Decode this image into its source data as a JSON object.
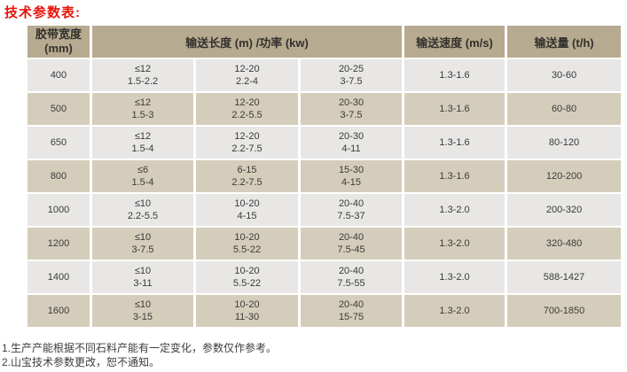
{
  "page": {
    "title": "技术参数表:"
  },
  "colors": {
    "title_red": "#e8130a",
    "header_bg": "#b6aa90",
    "row_tan": "#d5cdbb",
    "row_light": "#e8e7e5",
    "text": "#3a3a3a"
  },
  "table": {
    "headers": {
      "belt_width_line1": "胶带宽度",
      "belt_width_line2": "(mm)",
      "length_power": "输送长度 (m) /功率 (kw)",
      "speed": "输送速度 (m/s)",
      "capacity": "输送量 (t/h)"
    },
    "rows": [
      {
        "width": "400",
        "col1": {
          "len": "≤12",
          "pow": "1.5-2.2"
        },
        "col2": {
          "len": "12-20",
          "pow": "2.2-4"
        },
        "col3": {
          "len": "20-25",
          "pow": "3-7.5"
        },
        "speed": "1.3-1.6",
        "capacity": "30-60"
      },
      {
        "width": "500",
        "col1": {
          "len": "≤12",
          "pow": "1.5-3"
        },
        "col2": {
          "len": "12-20",
          "pow": "2.2-5.5"
        },
        "col3": {
          "len": "20-30",
          "pow": "3-7.5"
        },
        "speed": "1.3-1.6",
        "capacity": "60-80"
      },
      {
        "width": "650",
        "col1": {
          "len": "≤12",
          "pow": "1.5-4"
        },
        "col2": {
          "len": "12-20",
          "pow": "2.2-7.5"
        },
        "col3": {
          "len": "20-30",
          "pow": "4-11"
        },
        "speed": "1.3-1.6",
        "capacity": "80-120"
      },
      {
        "width": "800",
        "col1": {
          "len": "≤6",
          "pow": "1.5-4"
        },
        "col2": {
          "len": "6-15",
          "pow": "2.2-7.5"
        },
        "col3": {
          "len": "15-30",
          "pow": "4-15"
        },
        "speed": "1.3-1.6",
        "capacity": "120-200"
      },
      {
        "width": "1000",
        "col1": {
          "len": "≤10",
          "pow": "2.2-5.5"
        },
        "col2": {
          "len": "10-20",
          "pow": "4-15"
        },
        "col3": {
          "len": "20-40",
          "pow": "7.5-37"
        },
        "speed": "1.3-2.0",
        "capacity": "200-320"
      },
      {
        "width": "1200",
        "col1": {
          "len": "≤10",
          "pow": "3-7.5"
        },
        "col2": {
          "len": "10-20",
          "pow": "5.5-22"
        },
        "col3": {
          "len": "20-40",
          "pow": "7.5-45"
        },
        "speed": "1.3-2.0",
        "capacity": "320-480"
      },
      {
        "width": "1400",
        "col1": {
          "len": "≤10",
          "pow": "3-11"
        },
        "col2": {
          "len": "10-20",
          "pow": "5.5-22"
        },
        "col3": {
          "len": "20-40",
          "pow": "7.5-55"
        },
        "speed": "1.3-2.0",
        "capacity": "588-1427"
      },
      {
        "width": "1600",
        "col1": {
          "len": "≤10",
          "pow": "3-15"
        },
        "col2": {
          "len": "10-20",
          "pow": "11-30"
        },
        "col3": {
          "len": "20-40",
          "pow": "15-75"
        },
        "speed": "1.3-2.0",
        "capacity": "700-1850"
      }
    ]
  },
  "notes": [
    "1.生产产能根据不同石料产能有一定变化，参数仅作参考。",
    "2.山宝技术参数更改，恕不通知。"
  ]
}
